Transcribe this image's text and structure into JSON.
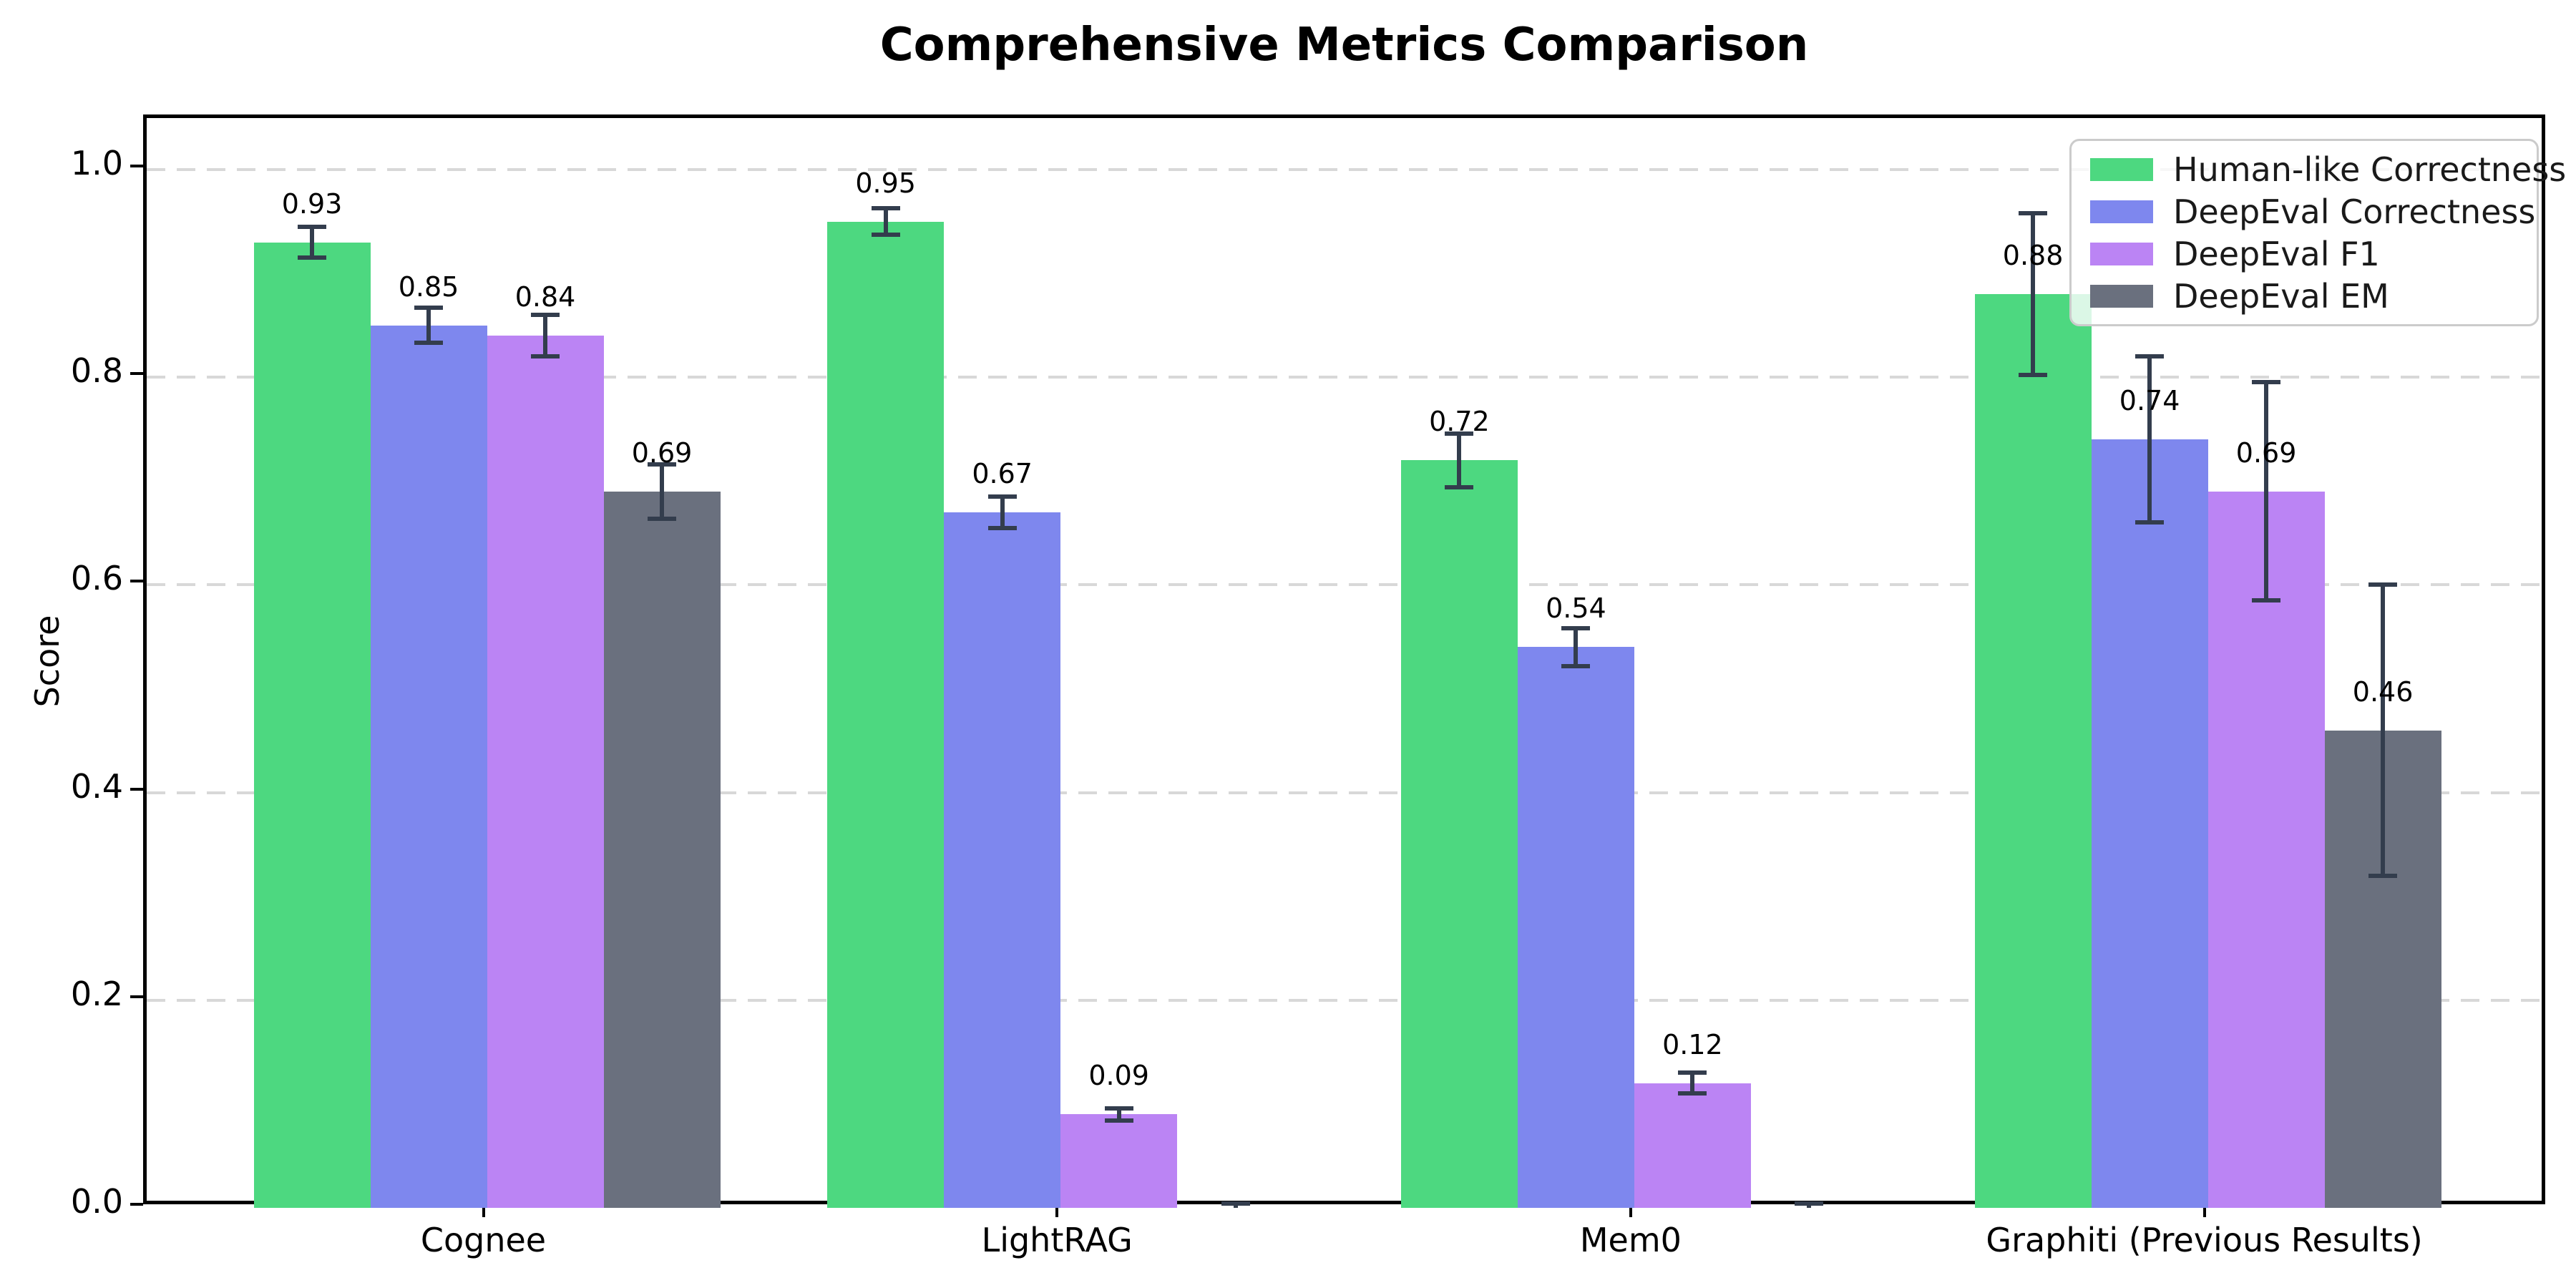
{
  "chart_data": {
    "type": "bar",
    "title": "Comprehensive Metrics Comparison",
    "xlabel": "",
    "ylabel": "Score",
    "ylim": [
      0.0,
      1.05
    ],
    "yticks": [
      "0.0",
      "0.2",
      "0.4",
      "0.6",
      "0.8",
      "1.0"
    ],
    "grid": "horizontal-dashed",
    "legend_position": "upper right",
    "categories": [
      "Cognee",
      "LightRAG",
      "Mem0",
      "Graphiti (Previous Results)"
    ],
    "series": [
      {
        "name": "Human-like Correctness",
        "color": "#4DD880",
        "values": [
          0.93,
          0.95,
          0.72,
          0.88
        ],
        "errors": [
          0.015,
          0.013,
          0.026,
          0.078
        ],
        "labels": [
          "0.93",
          "0.95",
          "0.72",
          "0.88"
        ]
      },
      {
        "name": "DeepEval Correctness",
        "color": "#7E87EE",
        "values": [
          0.85,
          0.67,
          0.54,
          0.74
        ],
        "errors": [
          0.017,
          0.015,
          0.018,
          0.08
        ],
        "labels": [
          "0.85",
          "0.67",
          "0.54",
          "0.74"
        ]
      },
      {
        "name": "DeepEval F1",
        "color": "#BB84F4",
        "values": [
          0.84,
          0.09,
          0.12,
          0.69
        ],
        "errors": [
          0.02,
          0.006,
          0.01,
          0.105
        ],
        "labels": [
          "0.84",
          "0.09",
          "0.12",
          "0.69"
        ]
      },
      {
        "name": "DeepEval EM",
        "color": "#6A707E",
        "values": [
          0.69,
          0.0,
          0.0,
          0.46
        ],
        "errors": [
          0.026,
          0.004,
          0.004,
          0.14
        ],
        "labels": [
          "0.69",
          null,
          null,
          "0.46"
        ]
      }
    ],
    "error_bar_color": "#333D4D"
  }
}
